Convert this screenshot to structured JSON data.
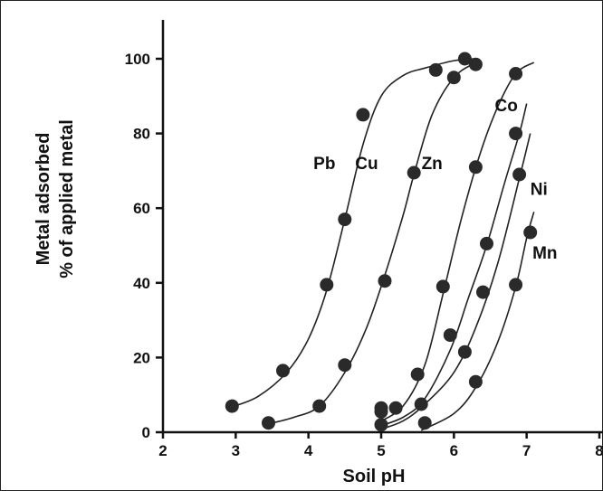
{
  "chart_data": {
    "type": "scatter",
    "title": "",
    "xlabel": "Soil pH",
    "ylabel": [
      "Metal adsorbed",
      "% of applied metal"
    ],
    "xlim": [
      2,
      8
    ],
    "ylim": [
      0,
      100
    ],
    "x_ticks": [
      "2",
      "3",
      "4",
      "5",
      "6",
      "7",
      "8"
    ],
    "y_ticks": [
      "0",
      "20",
      "40",
      "60",
      "80",
      "100"
    ],
    "grid": false,
    "legend": "none (series labeled inline)",
    "series": [
      {
        "name": "Pb",
        "points": [
          [
            2.95,
            7
          ],
          [
            3.65,
            16.5
          ],
          [
            4.25,
            39.5
          ],
          [
            4.5,
            57
          ],
          [
            4.75,
            85
          ],
          [
            5.75,
            97
          ],
          [
            6.15,
            100
          ]
        ],
        "curve": [
          [
            2.9,
            6.5
          ],
          [
            3.3,
            9.5
          ],
          [
            3.7,
            16
          ],
          [
            4.0,
            25
          ],
          [
            4.25,
            38
          ],
          [
            4.5,
            57
          ],
          [
            4.75,
            77
          ],
          [
            5.0,
            90
          ],
          [
            5.3,
            95.5
          ],
          [
            5.6,
            97.5
          ],
          [
            6.0,
            99.5
          ],
          [
            6.3,
            100
          ]
        ]
      },
      {
        "name": "Cu",
        "points": [
          [
            3.45,
            2.5
          ],
          [
            4.15,
            7
          ],
          [
            4.5,
            18
          ],
          [
            5.05,
            40.5
          ],
          [
            5.45,
            69.5
          ],
          [
            6.0,
            95
          ],
          [
            6.3,
            98.5
          ]
        ],
        "curve": [
          [
            3.4,
            2
          ],
          [
            3.8,
            4
          ],
          [
            4.15,
            7
          ],
          [
            4.5,
            16
          ],
          [
            4.8,
            28
          ],
          [
            5.05,
            42
          ],
          [
            5.3,
            58
          ],
          [
            5.45,
            69
          ],
          [
            5.7,
            85
          ],
          [
            6.0,
            95
          ],
          [
            6.3,
            99
          ]
        ]
      },
      {
        "name": "Zn",
        "points": [
          [
            5.0,
            6.5
          ],
          [
            5.5,
            15.5
          ],
          [
            5.85,
            39
          ],
          [
            6.3,
            71
          ],
          [
            6.85,
            96
          ]
        ],
        "curve": [
          [
            4.95,
            2.5
          ],
          [
            5.3,
            7
          ],
          [
            5.6,
            18
          ],
          [
            5.85,
            37
          ],
          [
            6.1,
            57
          ],
          [
            6.35,
            74
          ],
          [
            6.6,
            87
          ],
          [
            6.85,
            96
          ],
          [
            7.1,
            99
          ]
        ]
      },
      {
        "name": "Co",
        "points": [
          [
            5.0,
            5.5
          ],
          [
            5.2,
            6.5
          ],
          [
            5.95,
            26
          ],
          [
            6.15,
            21.5
          ],
          [
            6.4,
            37.5
          ],
          [
            6.45,
            50.5
          ],
          [
            6.85,
            80
          ]
        ],
        "curve": [
          [
            4.95,
            1.5
          ],
          [
            5.3,
            4
          ],
          [
            5.6,
            9
          ],
          [
            5.95,
            22
          ],
          [
            6.2,
            36
          ],
          [
            6.45,
            50
          ],
          [
            6.7,
            67
          ],
          [
            6.9,
            80
          ],
          [
            7.0,
            88
          ]
        ]
      },
      {
        "name": "Ni",
        "points": [
          [
            5.0,
            2
          ],
          [
            5.55,
            7.5
          ],
          [
            6.9,
            69
          ]
        ],
        "curve": [
          [
            4.95,
            0.5
          ],
          [
            5.3,
            3
          ],
          [
            5.6,
            7.5
          ],
          [
            6.0,
            16
          ],
          [
            6.3,
            28
          ],
          [
            6.6,
            45
          ],
          [
            6.9,
            68
          ],
          [
            7.05,
            80
          ]
        ]
      },
      {
        "name": "Mn",
        "points": [
          [
            5.6,
            2.5
          ],
          [
            6.3,
            13.5
          ],
          [
            6.85,
            39.5
          ],
          [
            7.05,
            53.5
          ]
        ],
        "curve": [
          [
            5.55,
            0.5
          ],
          [
            6.0,
            5
          ],
          [
            6.3,
            12
          ],
          [
            6.6,
            24
          ],
          [
            6.85,
            39
          ],
          [
            7.0,
            52
          ],
          [
            7.1,
            59
          ]
        ]
      }
    ]
  }
}
